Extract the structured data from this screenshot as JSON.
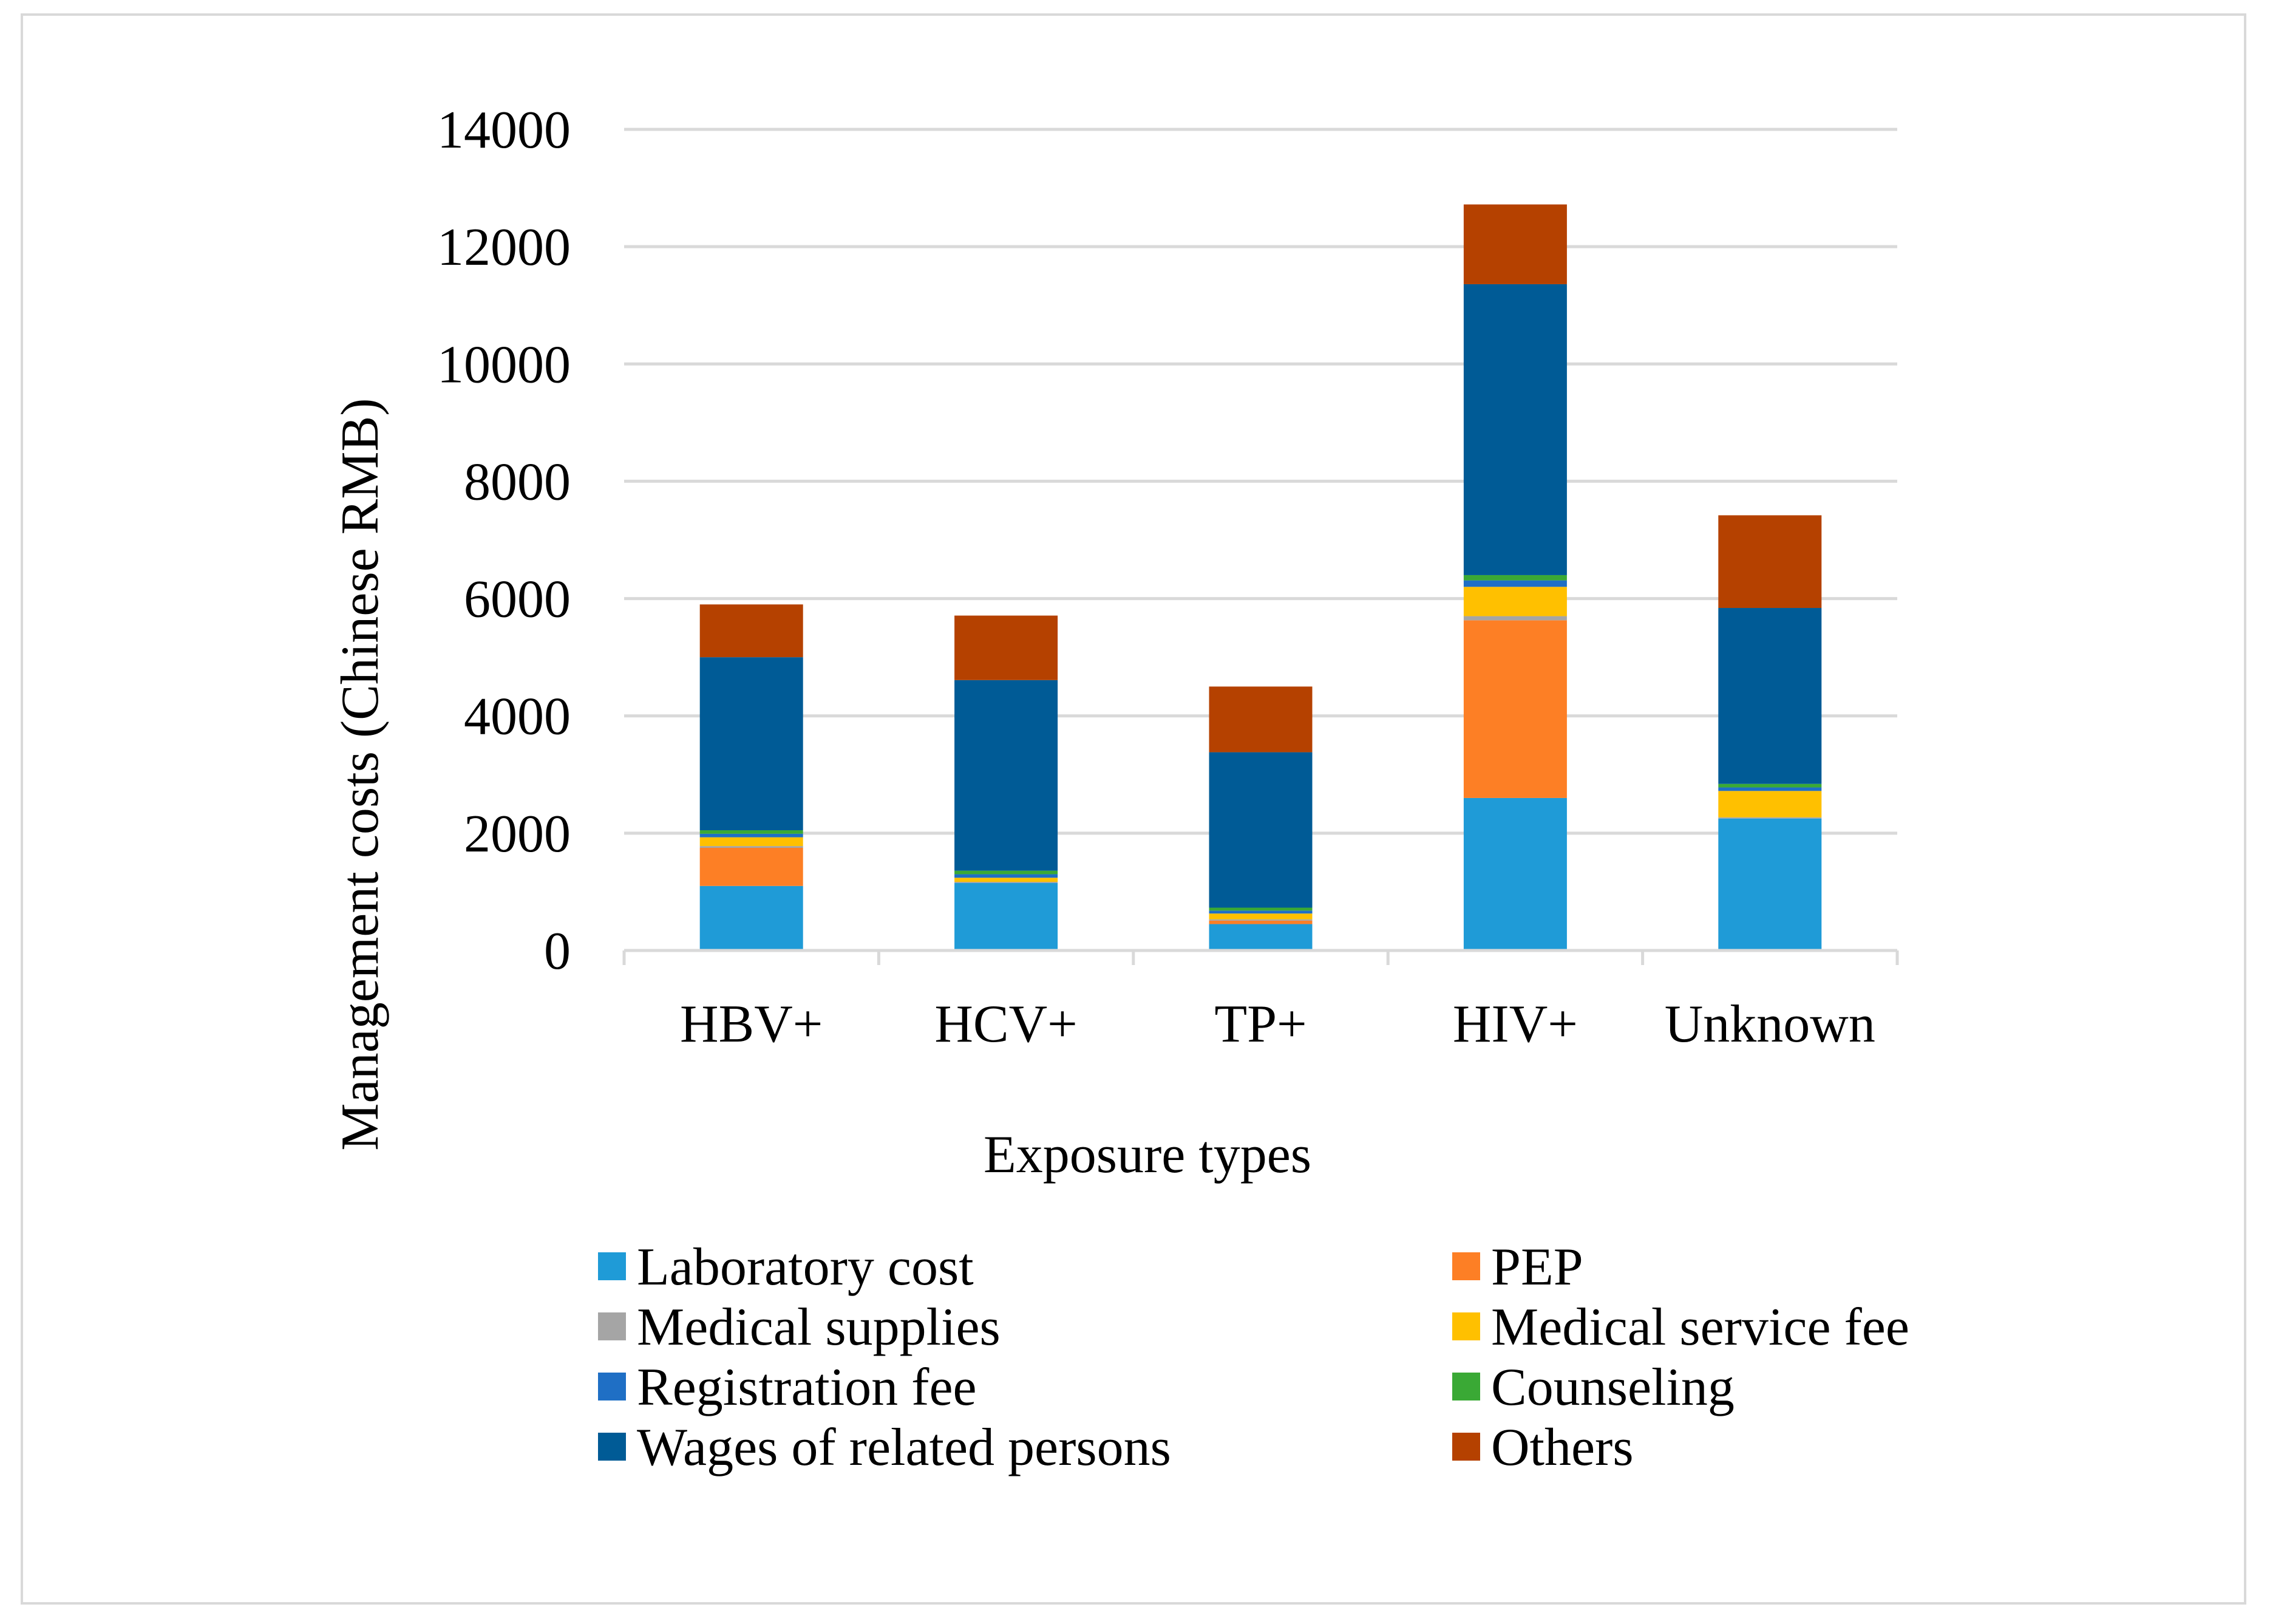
{
  "chart_data": {
    "type": "bar",
    "stacked": true,
    "title": "",
    "xlabel": "Exposure types",
    "ylabel": "Management costs (Chinese RMB)",
    "ylim": [
      0,
      14000
    ],
    "yticks": [
      0,
      2000,
      4000,
      6000,
      8000,
      10000,
      12000,
      14000
    ],
    "grid": true,
    "legend_position": "bottom",
    "categories": [
      "HBV+",
      "HCV+",
      "TP+",
      "HIV+",
      "Unknown"
    ],
    "series": [
      {
        "name": "Laboratory cost",
        "color": "#1f9bd7",
        "values": [
          1100,
          1150,
          450,
          2600,
          2250
        ]
      },
      {
        "name": "PEP",
        "color": "#fd7f25",
        "values": [
          650,
          0,
          60,
          3030,
          0
        ]
      },
      {
        "name": "Medical supplies",
        "color": "#a5a5a5",
        "values": [
          30,
          20,
          20,
          70,
          20
        ]
      },
      {
        "name": "Medical service fee",
        "color": "#ffc000",
        "values": [
          150,
          70,
          100,
          500,
          450
        ]
      },
      {
        "name": "Registration fee",
        "color": "#1f6fc5",
        "values": [
          60,
          60,
          50,
          110,
          60
        ]
      },
      {
        "name": "Counseling",
        "color": "#3aa935",
        "values": [
          60,
          60,
          50,
          90,
          60
        ]
      },
      {
        "name": "Wages of related persons",
        "color": "#005b96",
        "values": [
          2950,
          3250,
          2650,
          4960,
          3000
        ]
      },
      {
        "name": "Others",
        "color": "#b54100",
        "values": [
          900,
          1100,
          1120,
          1360,
          1580
        ]
      }
    ]
  }
}
